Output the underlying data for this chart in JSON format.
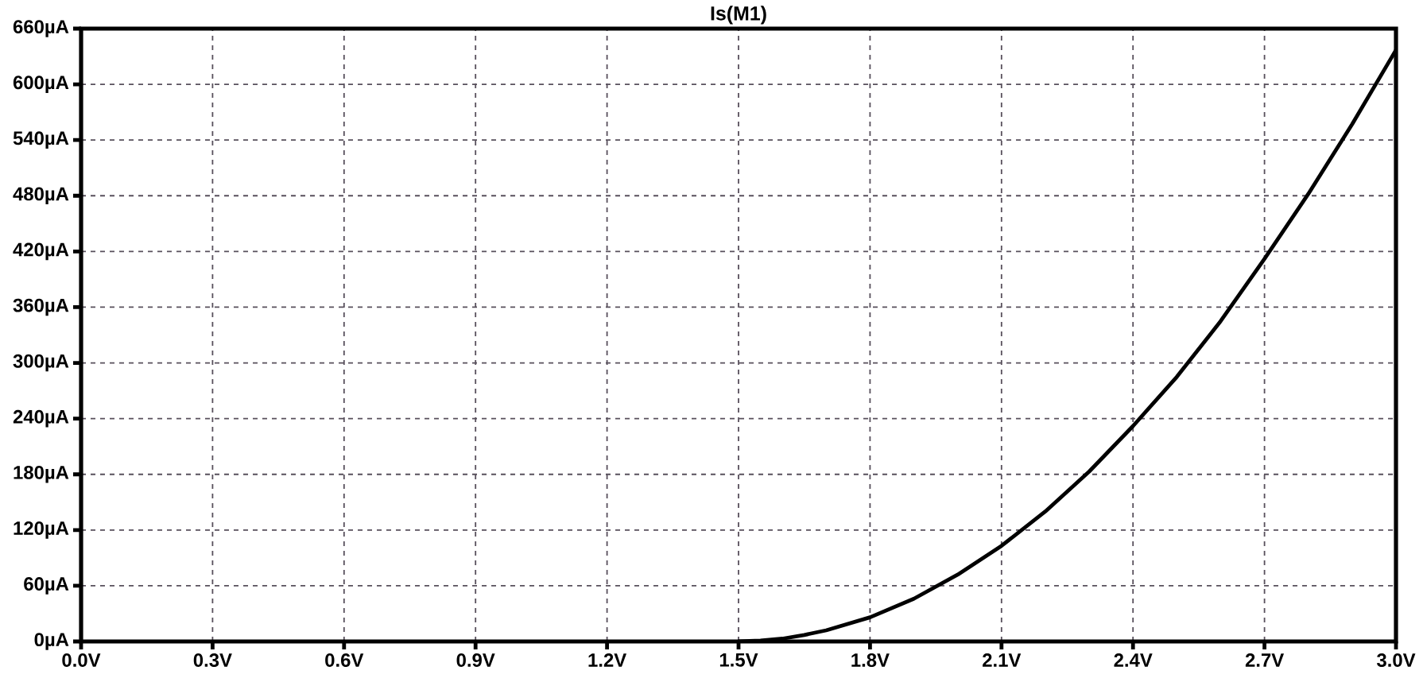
{
  "chart_data": {
    "type": "line",
    "title": "Is(M1)",
    "x": [
      1.5,
      1.55,
      1.6,
      1.65,
      1.7,
      1.8,
      1.9,
      2.0,
      2.1,
      2.2,
      2.3,
      2.4,
      2.5,
      2.6,
      2.7,
      2.8,
      2.9,
      3.0
    ],
    "values": [
      0,
      1,
      3,
      7,
      12,
      26,
      46,
      72,
      103,
      140,
      183,
      232,
      285,
      345,
      412,
      482,
      557,
      637
    ],
    "color": "#000000",
    "xlim": [
      0,
      3
    ],
    "ylim": [
      0,
      660
    ],
    "xticks": [
      {
        "value": 0,
        "label": "0.0V"
      },
      {
        "value": 0.3,
        "label": "0.3V"
      },
      {
        "value": 0.6,
        "label": "0.6V"
      },
      {
        "value": 0.9,
        "label": "0.9V"
      },
      {
        "value": 1.2,
        "label": "1.2V"
      },
      {
        "value": 1.5,
        "label": "1.5V"
      },
      {
        "value": 1.8,
        "label": "1.8V"
      },
      {
        "value": 2.1,
        "label": "2.1V"
      },
      {
        "value": 2.4,
        "label": "2.4V"
      },
      {
        "value": 2.7,
        "label": "2.7V"
      },
      {
        "value": 3.0,
        "label": "3.0V"
      }
    ],
    "yticks": [
      {
        "value": 0,
        "label": "0µA"
      },
      {
        "value": 60,
        "label": "60µA"
      },
      {
        "value": 120,
        "label": "120µA"
      },
      {
        "value": 180,
        "label": "180µA"
      },
      {
        "value": 240,
        "label": "240µA"
      },
      {
        "value": 300,
        "label": "300µA"
      },
      {
        "value": 360,
        "label": "360µA"
      },
      {
        "value": 420,
        "label": "420µA"
      },
      {
        "value": 480,
        "label": "480µA"
      },
      {
        "value": 540,
        "label": "540µA"
      },
      {
        "value": 600,
        "label": "600µA"
      },
      {
        "value": 660,
        "label": "660µA"
      }
    ],
    "grid": true
  }
}
